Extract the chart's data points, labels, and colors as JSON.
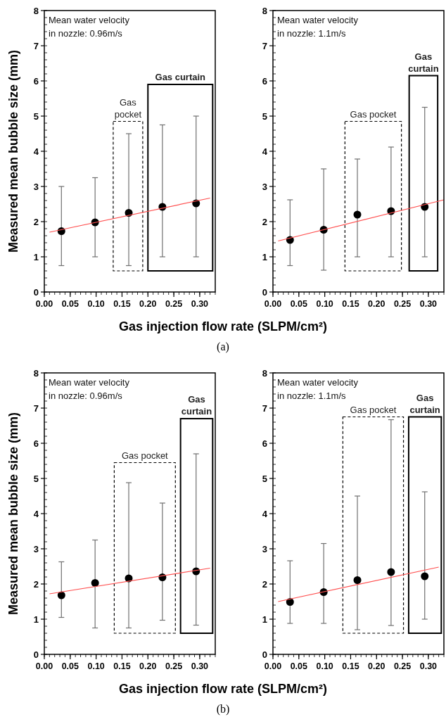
{
  "chart_data": [
    {
      "type": "scatter",
      "ylabel": "Measured mean bubble size (mm)",
      "xlabel": "Gas injection flow rate (SLPM/cm²)",
      "x": [
        0.033,
        0.098,
        0.163,
        0.228,
        0.293
      ],
      "xlim": [
        0,
        0.33
      ],
      "ylim": [
        0,
        8
      ],
      "xticks": [
        {
          "value": 0,
          "label": "0.00"
        },
        0.05,
        {
          "value": 0.1,
          "label": "0.10"
        },
        0.15,
        {
          "value": 0.2,
          "label": "0.20"
        },
        0.25,
        {
          "value": 0.3,
          "label": "0.30"
        }
      ],
      "yticks": [
        0,
        1,
        2,
        3,
        4,
        5,
        6,
        7,
        8
      ],
      "annotations": [
        "Mean water velocity\nin nozzle: 0.96m/s",
        "Gas\npocket",
        "Gas curtain",
        "(a)"
      ],
      "series": [
        {
          "type": "scatter",
          "marker": "circle",
          "color": "#000000",
          "values": [
            1.73,
            1.98,
            2.25,
            2.42,
            2.52
          ],
          "errors": [
            [
              0.75,
              3.0
            ],
            [
              1.0,
              3.25
            ],
            [
              0.75,
              4.5
            ],
            [
              1.0,
              4.75
            ],
            [
              1.0,
              5.0
            ]
          ]
        },
        {
          "type": "line",
          "color": "#ff5050",
          "x": [
            0.01,
            0.32
          ],
          "values": [
            1.7,
            2.67
          ]
        }
      ]
    },
    {
      "type": "scatter",
      "x": [
        0.033,
        0.098,
        0.163,
        0.228,
        0.293
      ],
      "xlim": [
        0,
        0.33
      ],
      "ylim": [
        0,
        8
      ],
      "xticks": [
        {
          "value": 0,
          "label": "0.00"
        },
        0.05,
        {
          "value": 0.1,
          "label": "0.10"
        },
        0.15,
        {
          "value": 0.2,
          "label": "0.20"
        },
        0.25,
        {
          "value": 0.3,
          "label": "0.30"
        }
      ],
      "yticks": [
        0,
        1,
        2,
        3,
        4,
        5,
        6,
        7,
        8
      ],
      "annotations": [
        "Mean water velocity\nin nozzle: 1.1m/s",
        "Gas pocket",
        "Gas\ncurtain"
      ],
      "series": [
        {
          "type": "scatter",
          "marker": "circle",
          "color": "#000000",
          "values": [
            1.48,
            1.77,
            2.2,
            2.3,
            2.42
          ],
          "errors": [
            [
              0.75,
              2.62
            ],
            [
              0.62,
              3.5
            ],
            [
              1.0,
              3.78
            ],
            [
              1.0,
              4.12
            ],
            [
              1.0,
              5.25
            ]
          ]
        },
        {
          "type": "line",
          "color": "#ff5050",
          "x": [
            0.01,
            0.33
          ],
          "values": [
            1.45,
            2.62
          ]
        }
      ]
    },
    {
      "type": "scatter",
      "ylabel": "Measured mean bubble size (mm)",
      "xlabel": "Gas injection flow rate (SLPM/cm²)",
      "x": [
        0.033,
        0.098,
        0.163,
        0.228,
        0.293
      ],
      "xlim": [
        0,
        0.33
      ],
      "ylim": [
        0,
        8
      ],
      "xticks": [
        {
          "value": 0,
          "label": "0.00"
        },
        0.05,
        {
          "value": 0.1,
          "label": "0.10"
        },
        0.15,
        {
          "value": 0.2,
          "label": "0.20"
        },
        0.25,
        {
          "value": 0.3,
          "label": "0.30"
        }
      ],
      "yticks": [
        0,
        1,
        2,
        3,
        4,
        5,
        6,
        7,
        8
      ],
      "annotations": [
        "Mean water velocity\nin nozzle: 0.96m/s",
        "Gas pocket",
        "Gas\ncurtain",
        "(b)"
      ],
      "series": [
        {
          "type": "scatter",
          "marker": "circle",
          "color": "#000000",
          "values": [
            1.68,
            2.03,
            2.16,
            2.19,
            2.36
          ],
          "errors": [
            [
              1.05,
              2.63
            ],
            [
              0.75,
              3.25
            ],
            [
              0.75,
              4.88
            ],
            [
              0.97,
              4.3
            ],
            [
              0.83,
              5.7
            ]
          ]
        },
        {
          "type": "line",
          "color": "#ff5050",
          "x": [
            0.01,
            0.32
          ],
          "values": [
            1.72,
            2.45
          ]
        }
      ]
    },
    {
      "type": "scatter",
      "x": [
        0.033,
        0.098,
        0.163,
        0.228,
        0.293
      ],
      "xlim": [
        0,
        0.33
      ],
      "ylim": [
        0,
        8
      ],
      "xticks": [
        {
          "value": 0,
          "label": "0.00"
        },
        0.05,
        {
          "value": 0.1,
          "label": "0.10"
        },
        0.15,
        {
          "value": 0.2,
          "label": "0.20"
        },
        0.25,
        {
          "value": 0.3,
          "label": "0.30"
        }
      ],
      "yticks": [
        0,
        1,
        2,
        3,
        4,
        5,
        6,
        7,
        8
      ],
      "annotations": [
        "Mean water velocity\nin nozzle: 1.1m/s",
        "Gas pocket",
        "Gas\ncurtain"
      ],
      "series": [
        {
          "type": "scatter",
          "marker": "circle",
          "color": "#000000",
          "values": [
            1.49,
            1.77,
            2.11,
            2.34,
            2.22
          ],
          "errors": [
            [
              0.88,
              2.66
            ],
            [
              0.88,
              3.15
            ],
            [
              0.7,
              4.5
            ],
            [
              0.82,
              6.67
            ],
            [
              1.0,
              4.62
            ]
          ]
        },
        {
          "type": "line",
          "color": "#ff5050",
          "x": [
            0.01,
            0.32
          ],
          "values": [
            1.5,
            2.48
          ]
        }
      ]
    }
  ]
}
